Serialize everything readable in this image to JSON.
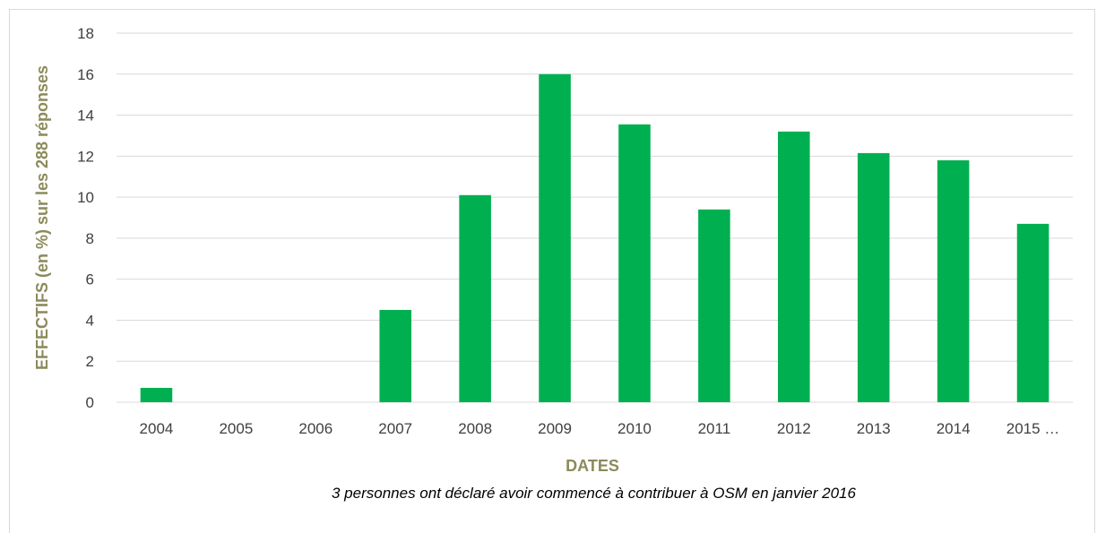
{
  "chart_data": {
    "type": "bar",
    "title": "",
    "xlabel": "DATES",
    "ylabel": "EFFECTIFS (en %) sur les 288 réponses",
    "categories": [
      "2004",
      "2005",
      "2006",
      "2007",
      "2008",
      "2009",
      "2010",
      "2011",
      "2012",
      "2013",
      "2014",
      "2015 …"
    ],
    "values": [
      0.7,
      0,
      0,
      4.5,
      10.1,
      16.0,
      13.55,
      9.4,
      13.2,
      12.15,
      11.8,
      8.7
    ],
    "ylim": [
      0,
      18
    ],
    "yticks": [
      "0",
      "2",
      "4",
      "6",
      "8",
      "10",
      "12",
      "14",
      "16",
      "18"
    ],
    "grid": true,
    "legend": "none",
    "bar_color": "#00b050",
    "annotation": "3 personnes ont déclaré avoir commencé à contribuer à OSM en janvier 2016"
  }
}
